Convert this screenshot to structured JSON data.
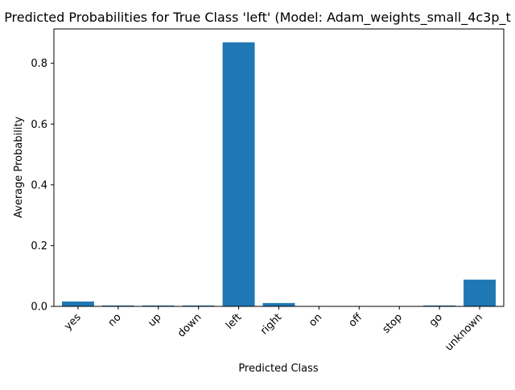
{
  "chart_data": {
    "type": "bar",
    "title": "Predicted Probabilities for True Class 'left' (Model: Adam_weights_small_4c3p_t",
    "xlabel": "Predicted Class",
    "ylabel": "Average Probability",
    "categories": [
      "yes",
      "no",
      "up",
      "down",
      "left",
      "right",
      "on",
      "off",
      "stop",
      "go",
      "unknown"
    ],
    "values": [
      0.016,
      0.003,
      0.003,
      0.003,
      0.869,
      0.011,
      0.001,
      0.001,
      0.001,
      0.003,
      0.088
    ],
    "ylim": [
      0,
      0.913
    ],
    "yticks": [
      0.0,
      0.2,
      0.4,
      0.6,
      0.8
    ],
    "ytick_labels": [
      "0.0",
      "0.2",
      "0.4",
      "0.6",
      "0.8"
    ],
    "bar_color": "#1f77b4",
    "grid": false,
    "legend": "none"
  }
}
